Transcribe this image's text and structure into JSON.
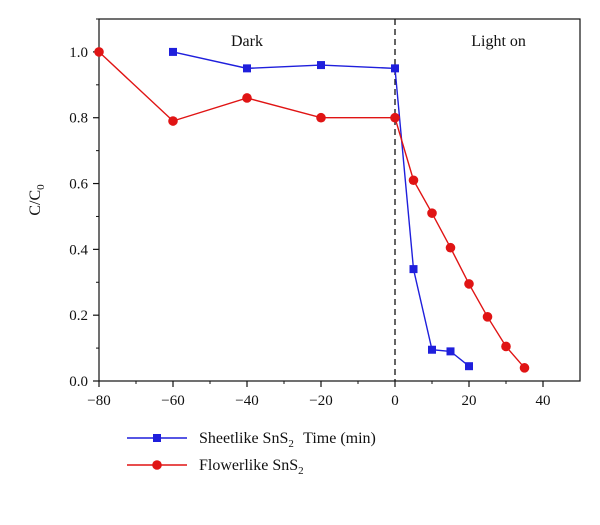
{
  "chart_data": {
    "type": "line",
    "title": "",
    "xlabel": "Time (min)",
    "ylabel": {
      "main": "C/C",
      "sub": "0"
    },
    "xlim": [
      -80,
      50
    ],
    "ylim": [
      0,
      1.1
    ],
    "xticks": [
      -80,
      -60,
      -40,
      -20,
      0,
      20,
      40
    ],
    "yticks": [
      0.0,
      0.2,
      0.4,
      0.6,
      0.8,
      1.0
    ],
    "xtick_labels": [
      "−80",
      "−60",
      "−40",
      "−20",
      "0",
      "20",
      "40"
    ],
    "ytick_labels": [
      "0.0",
      "0.2",
      "0.4",
      "0.6",
      "0.8",
      "1.0"
    ],
    "grid": false,
    "annotations": {
      "vline_x": 0,
      "dark_label": "Dark",
      "light_label": "Light on"
    },
    "legend_position": "bottom-left",
    "series": [
      {
        "name": "Sheetlike SnS",
        "name_sub": "2",
        "color": "#1f1fdc",
        "marker": "square",
        "x": [
          -60,
          -40,
          -20,
          0,
          5,
          10,
          15,
          20
        ],
        "y": [
          1.0,
          0.95,
          0.96,
          0.95,
          0.34,
          0.095,
          0.09,
          0.045
        ]
      },
      {
        "name": "Flowerlike SnS",
        "name_sub": "2",
        "color": "#e01414",
        "marker": "circle",
        "x": [
          -80,
          -60,
          -40,
          -20,
          0,
          5,
          10,
          15,
          20,
          25,
          30,
          35
        ],
        "y": [
          1.0,
          0.79,
          0.86,
          0.8,
          0.8,
          0.61,
          0.51,
          0.405,
          0.295,
          0.195,
          0.105,
          0.04
        ]
      }
    ]
  }
}
